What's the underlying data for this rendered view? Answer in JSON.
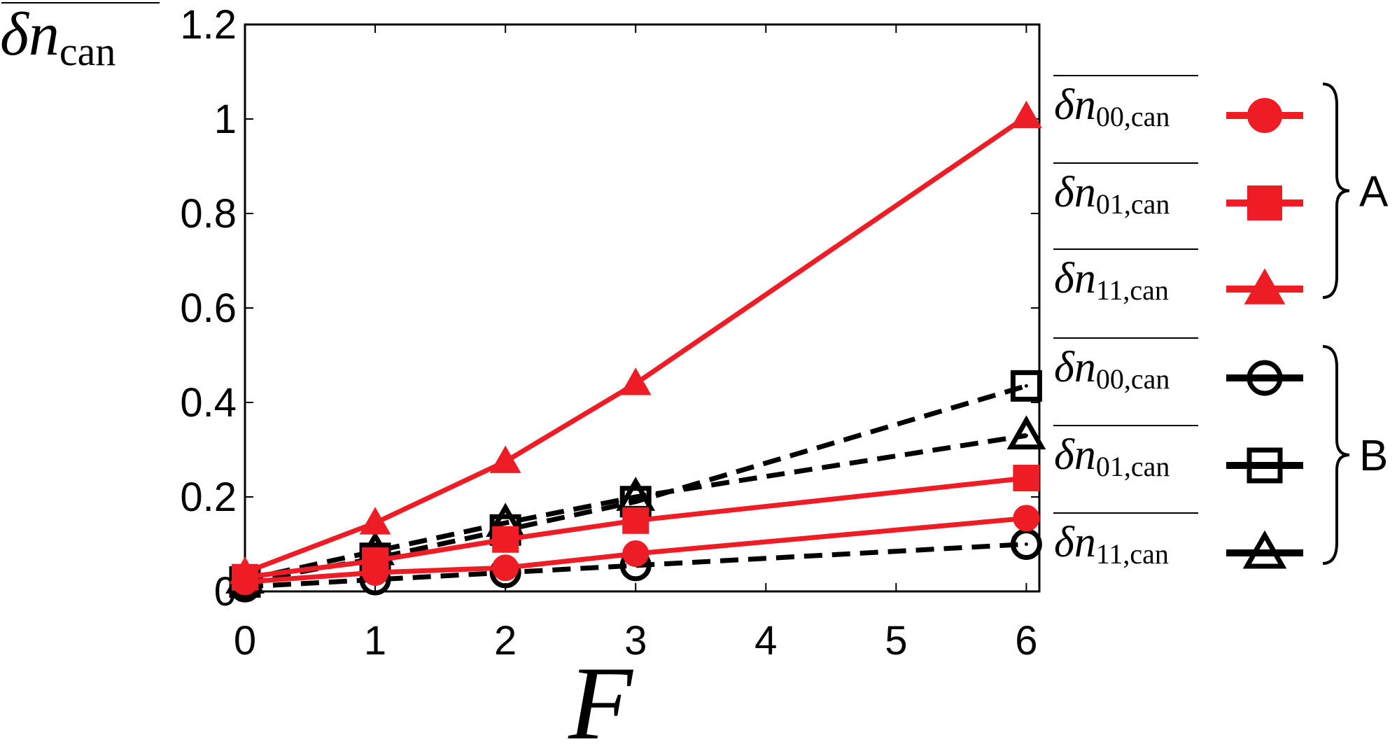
{
  "chart_data": {
    "type": "line",
    "xlabel": "F",
    "ylabel": {
      "symbol": "δn",
      "subscript": "can"
    },
    "x": [
      0,
      1,
      2,
      3,
      6
    ],
    "xticks": [
      0,
      1,
      2,
      3,
      4,
      5,
      6
    ],
    "xlim": [
      0,
      6.1
    ],
    "ylim": [
      0,
      1.2
    ],
    "yticks": [
      "0",
      "0.2",
      "0.4",
      "0.6",
      "0.8",
      "1",
      "1.2"
    ],
    "ytick_values": [
      0,
      0.2,
      0.4,
      0.6,
      0.8,
      1.0,
      1.2
    ],
    "grid": false,
    "legend_position": "right",
    "groups": [
      {
        "label": "A",
        "series_indices": [
          0,
          1,
          2
        ]
      },
      {
        "label": "B",
        "series_indices": [
          3,
          4,
          5
        ]
      }
    ],
    "series": [
      {
        "name_symbol": "δn",
        "name_subscript": "00,can",
        "group": "A",
        "color": "#ee1c25",
        "dash": "solid",
        "marker": "circle",
        "filled": true,
        "values": [
          0.02,
          0.04,
          0.05,
          0.08,
          0.155
        ]
      },
      {
        "name_symbol": "δn",
        "name_subscript": "01,can",
        "group": "A",
        "color": "#ee1c25",
        "dash": "solid",
        "marker": "square",
        "filled": true,
        "values": [
          0.03,
          0.065,
          0.11,
          0.15,
          0.24
        ]
      },
      {
        "name_symbol": "δn",
        "name_subscript": "11,can",
        "group": "A",
        "color": "#ee1c25",
        "dash": "solid",
        "marker": "triangle",
        "filled": true,
        "values": [
          0.04,
          0.145,
          0.275,
          0.44,
          1.005
        ]
      },
      {
        "name_symbol": "δn",
        "name_subscript": "00,can",
        "group": "B",
        "color": "#000000",
        "dash": "dashed",
        "marker": "circle",
        "filled": false,
        "values": [
          0.01,
          0.025,
          0.04,
          0.055,
          0.1
        ]
      },
      {
        "name_symbol": "δn",
        "name_subscript": "01,can",
        "group": "B",
        "color": "#000000",
        "dash": "dashed",
        "marker": "square",
        "filled": false,
        "values": [
          0.02,
          0.07,
          0.13,
          0.19,
          0.435
        ]
      },
      {
        "name_symbol": "δn",
        "name_subscript": "11,can",
        "group": "B",
        "color": "#000000",
        "dash": "dashed",
        "marker": "triangle",
        "filled": false,
        "values": [
          0.025,
          0.085,
          0.145,
          0.2,
          0.33
        ]
      }
    ]
  }
}
